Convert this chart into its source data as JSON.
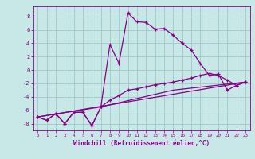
{
  "xlabel": "Windchill (Refroidissement éolien,°C)",
  "bg_color": "#c8e8e8",
  "grid_color": "#a0c8c8",
  "line_color": "#880088",
  "ylim": [
    -9,
    9.5
  ],
  "xlim": [
    -0.5,
    23.5
  ],
  "yticks": [
    -8,
    -6,
    -4,
    -2,
    0,
    2,
    4,
    6,
    8
  ],
  "xticks": [
    0,
    1,
    2,
    3,
    4,
    5,
    6,
    7,
    8,
    9,
    10,
    11,
    12,
    13,
    14,
    15,
    16,
    17,
    18,
    19,
    20,
    21,
    22,
    23
  ],
  "series1_x": [
    0,
    1,
    2,
    3,
    4,
    5,
    6,
    7,
    8,
    9,
    10,
    11,
    12,
    13,
    14,
    15,
    16,
    17,
    18,
    19,
    20,
    21,
    22,
    23
  ],
  "series1_y": [
    -7.0,
    -7.5,
    -6.5,
    -8.0,
    -6.3,
    -6.3,
    -8.3,
    -5.5,
    3.8,
    1.0,
    8.5,
    7.2,
    7.1,
    6.1,
    6.2,
    5.2,
    4.0,
    3.0,
    1.0,
    -0.8,
    -0.6,
    -3.0,
    -2.3,
    -1.8
  ],
  "series2_x": [
    0,
    1,
    2,
    3,
    4,
    5,
    6,
    7,
    8,
    9,
    10,
    11,
    12,
    13,
    14,
    15,
    16,
    17,
    18,
    19,
    20,
    21,
    22,
    23
  ],
  "series2_y": [
    -7.0,
    -7.5,
    -6.5,
    -8.0,
    -6.3,
    -6.3,
    -8.3,
    -5.5,
    -4.5,
    -3.8,
    -3.0,
    -2.8,
    -2.5,
    -2.2,
    -2.0,
    -1.8,
    -1.5,
    -1.2,
    -0.8,
    -0.5,
    -0.8,
    -1.5,
    -2.3,
    -1.8
  ],
  "series3_x": [
    0,
    23
  ],
  "series3_y": [
    -7.0,
    -1.8
  ],
  "series4_x": [
    0,
    7,
    15,
    23
  ],
  "series4_y": [
    -7.0,
    -5.5,
    -3.0,
    -1.8
  ]
}
